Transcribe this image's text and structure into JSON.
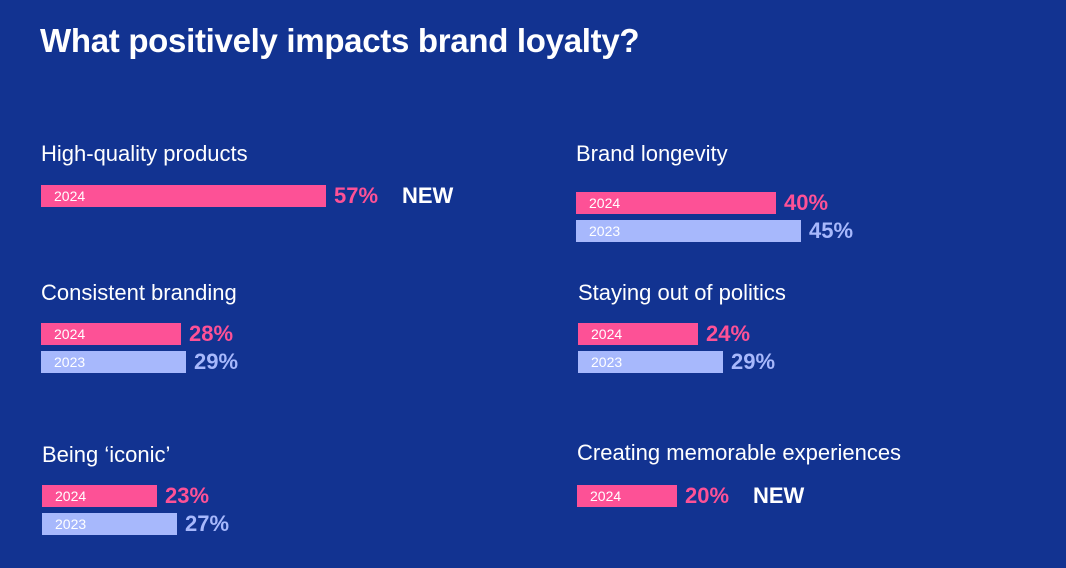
{
  "chart_data": {
    "type": "bar",
    "title": "What positively impacts brand loyalty?",
    "groups": [
      {
        "label": "High-quality products",
        "series": [
          {
            "name": "2024",
            "value": 57
          }
        ],
        "badge": "NEW"
      },
      {
        "label": "Brand longevity",
        "series": [
          {
            "name": "2024",
            "value": 40
          },
          {
            "name": "2023",
            "value": 45
          }
        ]
      },
      {
        "label": "Consistent branding",
        "series": [
          {
            "name": "2024",
            "value": 28
          },
          {
            "name": "2023",
            "value": 29
          }
        ]
      },
      {
        "label": "Staying out of politics",
        "series": [
          {
            "name": "2024",
            "value": 24
          },
          {
            "name": "2023",
            "value": 29
          }
        ]
      },
      {
        "label": "Being ‘iconic’",
        "series": [
          {
            "name": "2024",
            "value": 23
          },
          {
            "name": "2023",
            "value": 27
          }
        ]
      },
      {
        "label": "Creating memorable experiences",
        "series": [
          {
            "name": "2024",
            "value": 20
          }
        ],
        "badge": "NEW"
      }
    ],
    "colors": {
      "2024": "#fd5196",
      "2023": "#a7b8fc",
      "background": "#123391"
    }
  }
}
